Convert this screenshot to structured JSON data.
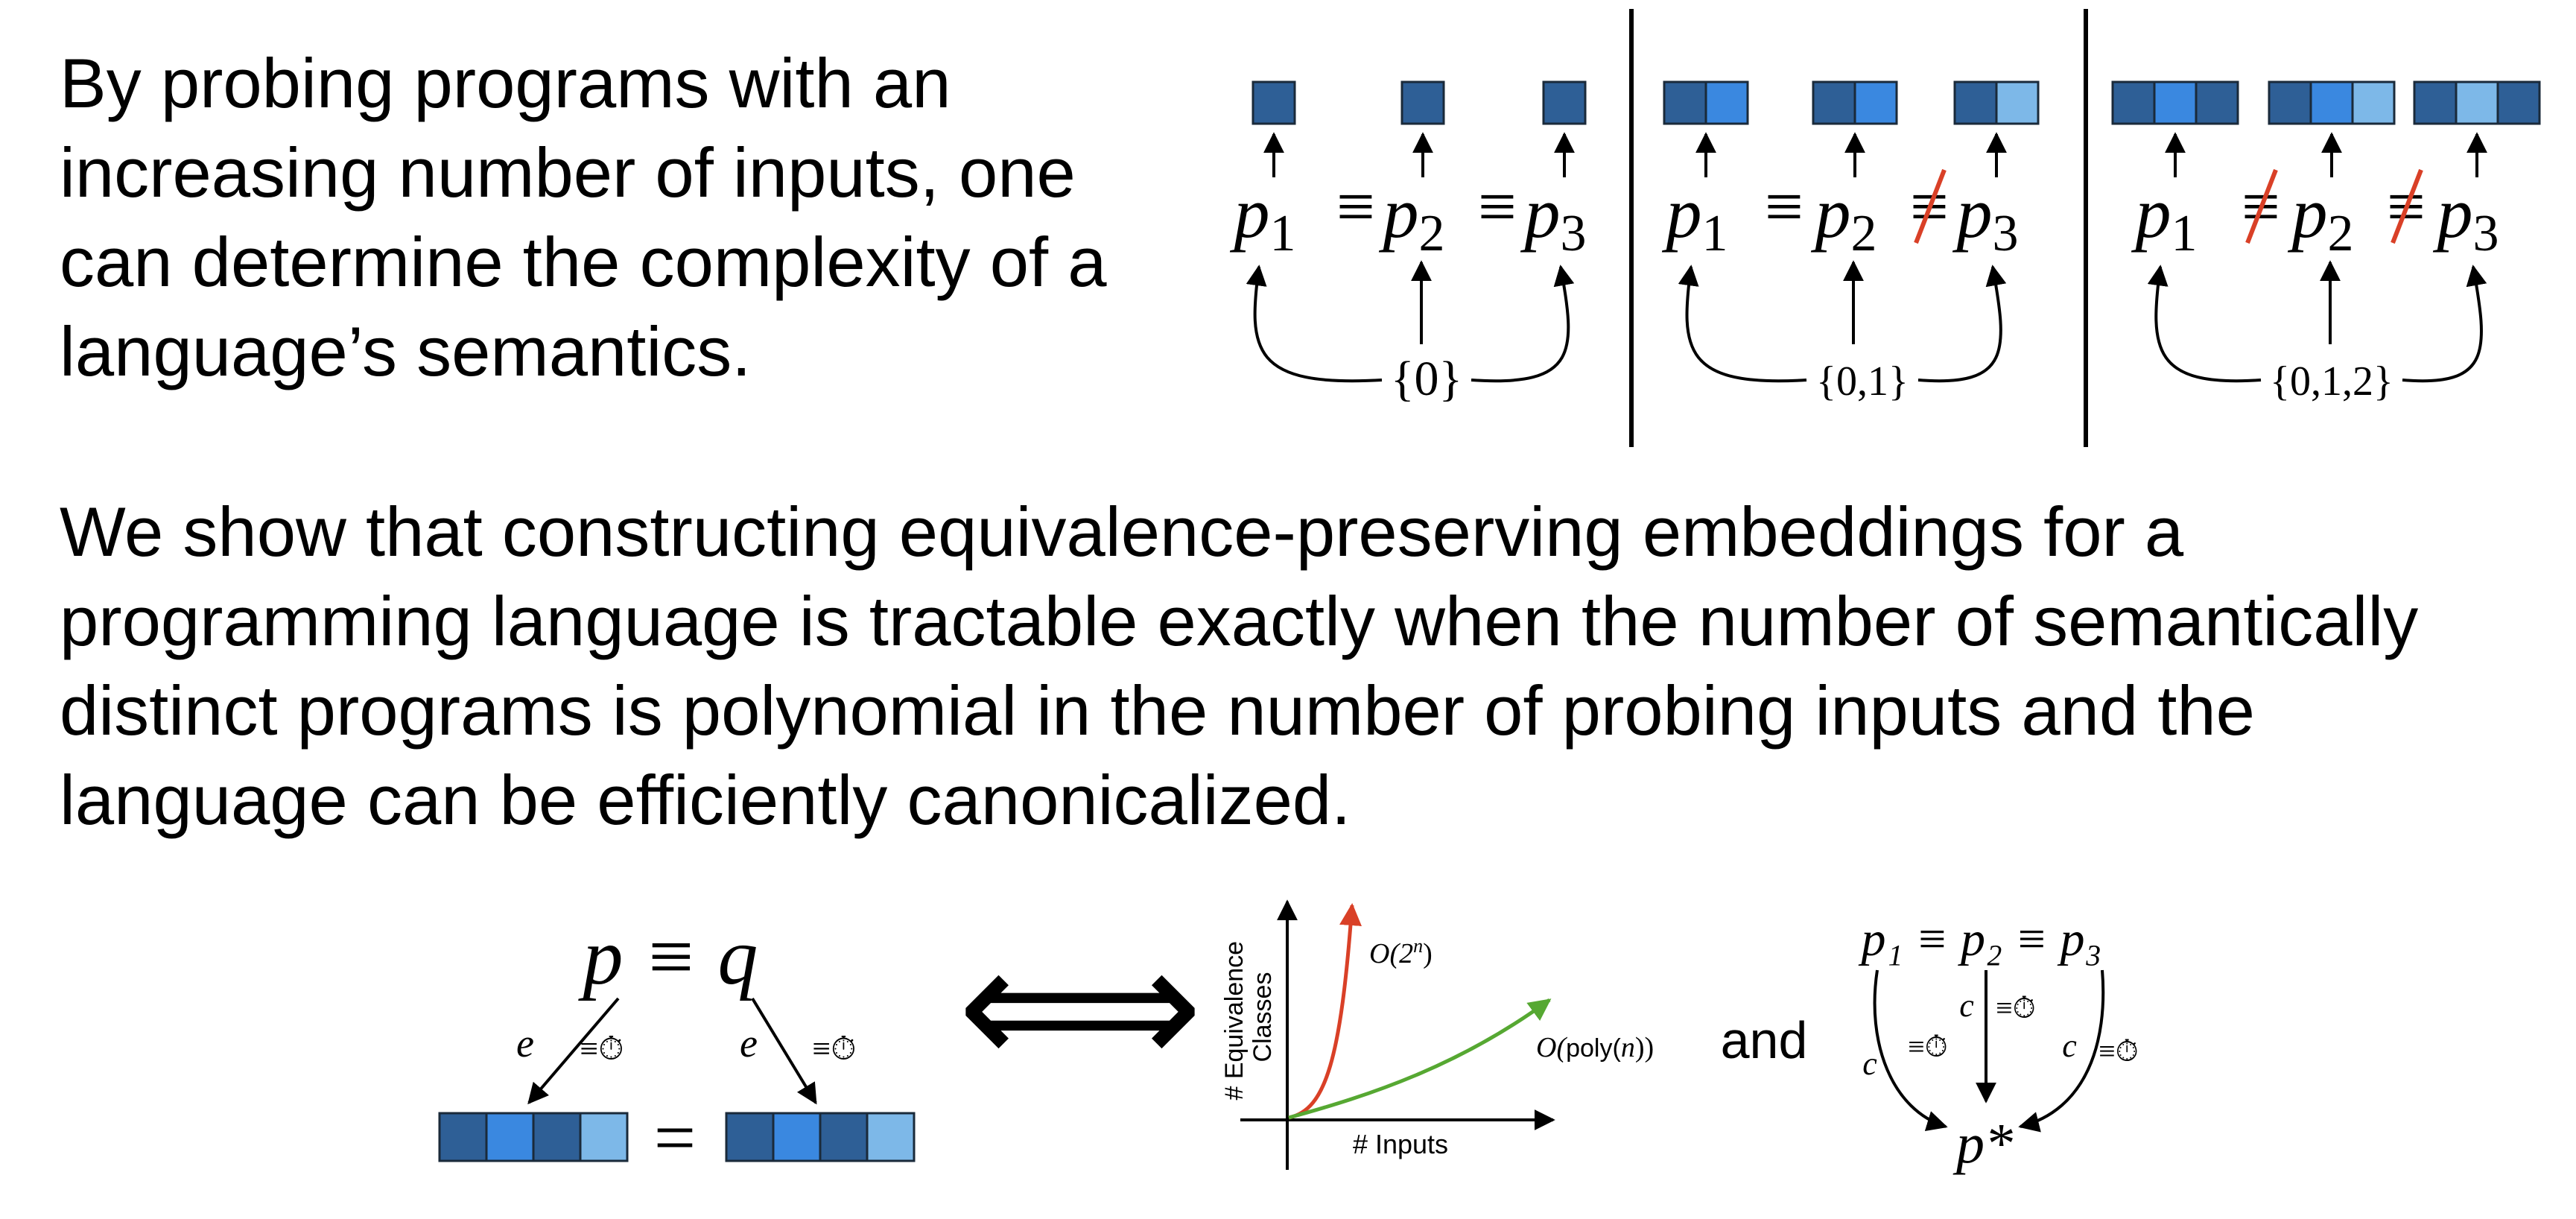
{
  "intro": {
    "lines": [
      "By probing programs with an",
      "increasing number of inputs, one",
      "can determine the complexity of a",
      "language’s semantics."
    ]
  },
  "result": {
    "lines": [
      "We show that constructing equivalence-preserving embeddings for a",
      "programming language is tractable exactly when the number of semantically",
      "distinct programs is polynomial in the number of probing inputs and the",
      "language can be efficiently canonicalized."
    ]
  },
  "probe_panels": [
    {
      "relations": [
        "≡",
        "≡"
      ],
      "negated": [
        false,
        false
      ],
      "input_set": "{0}"
    },
    {
      "relations": [
        "≡",
        "≡"
      ],
      "negated": [
        false,
        true
      ],
      "input_set": "{0,1}"
    },
    {
      "relations": [
        "≡",
        "≡"
      ],
      "negated": [
        true,
        true
      ],
      "input_set": "{0,1,2}"
    }
  ],
  "program_labels": {
    "p": "p",
    "subs": [
      "1",
      "2",
      "3"
    ]
  },
  "equivalence_diagram": {
    "top": "p ≡ q",
    "embed_label": "e",
    "efficient_label": "≡⏱",
    "equals": "="
  },
  "iff_symbol": "⟺",
  "complexity_chart": {
    "ylabel_line1": "# Equivalence",
    "ylabel_line2": "Classes",
    "xlabel": "# Inputs",
    "exp_label_main": "O(2",
    "exp_label_sup": "n",
    "exp_label_close": ")",
    "poly_label_start": "O(",
    "poly_label_mid": "poly(",
    "poly_label_n": "n",
    "poly_label_end": "))"
  },
  "and_label": "and",
  "canonicalization": {
    "top": "p₁ ≡ p₂ ≡ p₃",
    "canon_label": "c",
    "efficient_label": "≡⏱",
    "result": "p*"
  },
  "colors": {
    "dark_blue": "#2e5f96",
    "mid_blue": "#3a88e0",
    "light_blue": "#7db8e8",
    "red": "#d94027",
    "green": "#56a832",
    "black": "#000000"
  }
}
